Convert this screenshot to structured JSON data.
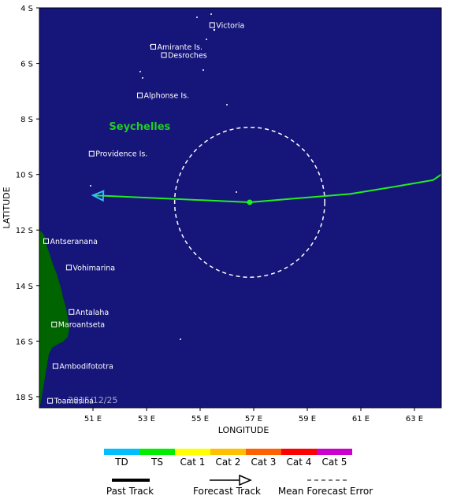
{
  "map": {
    "region": "Seychelles",
    "y_axis_label": "LATITUDE",
    "x_axis_label": "LONGITUDE",
    "lat_range": [
      4.0,
      18.4
    ],
    "lon_range": [
      49.0,
      64.0
    ],
    "lat_ticks": [
      {
        "value": 4,
        "label": "4 S"
      },
      {
        "value": 6,
        "label": "6 S"
      },
      {
        "value": 8,
        "label": "8 S"
      },
      {
        "value": 10,
        "label": "10 S"
      },
      {
        "value": 12,
        "label": "12 S"
      },
      {
        "value": 14,
        "label": "14 S"
      },
      {
        "value": 16,
        "label": "16 S"
      },
      {
        "value": 18,
        "label": "18 S"
      }
    ],
    "lon_ticks": [
      {
        "value": 51,
        "label": "51 E"
      },
      {
        "value": 53,
        "label": "53 E"
      },
      {
        "value": 55,
        "label": "55 E"
      },
      {
        "value": 57,
        "label": "57 E"
      },
      {
        "value": 59,
        "label": "59 E"
      },
      {
        "value": 61,
        "label": "61 E"
      },
      {
        "value": 63,
        "label": "63 E"
      }
    ],
    "places": [
      {
        "name": "Victoria",
        "lon": 55.45,
        "lat": 4.62
      },
      {
        "name": "Amirante Is.",
        "lon": 53.25,
        "lat": 5.4
      },
      {
        "name": "Desroches",
        "lon": 53.65,
        "lat": 5.7
      },
      {
        "name": "Alphonse Is.",
        "lon": 52.75,
        "lat": 7.15
      },
      {
        "name": "Providence Is.",
        "lon": 50.95,
        "lat": 9.25
      },
      {
        "name": "Antseranana",
        "lon": 49.25,
        "lat": 12.4
      },
      {
        "name": "Vohimarina",
        "lon": 50.1,
        "lat": 13.35
      },
      {
        "name": "Antalaha",
        "lon": 50.2,
        "lat": 14.95
      },
      {
        "name": "Maroantseta",
        "lon": 49.55,
        "lat": 15.4
      },
      {
        "name": "Ambodifototra",
        "lon": 49.6,
        "lat": 16.9
      },
      {
        "name": "Toamasina",
        "lon": 49.4,
        "lat": 18.15
      }
    ],
    "region_label": {
      "text": "Seychelles",
      "lon": 51.6,
      "lat": 8.4
    },
    "watermark": "2015/12/25",
    "forecast_track": [
      {
        "lon": 64.2,
        "lat": 10.0
      },
      {
        "lon": 63.7,
        "lat": 10.2
      },
      {
        "lon": 62.2,
        "lat": 10.45
      },
      {
        "lon": 60.6,
        "lat": 10.7
      },
      {
        "lon": 56.85,
        "lat": 11.0
      },
      {
        "lon": 51.0,
        "lat": 10.75
      }
    ],
    "storm_center": {
      "lon": 56.85,
      "lat": 11.0
    },
    "error_radius_deg": 2.7,
    "colors": {
      "ocean": "#15157a",
      "land": "#006400",
      "track": "#22ee22",
      "arrowhead": "#33bbff",
      "error_circle": "#ffffff",
      "place_text": "#ffffff",
      "region_text": "#22cc22"
    }
  },
  "legend": {
    "categories": [
      {
        "label": "TD",
        "color": "#00bfff"
      },
      {
        "label": "TS",
        "color": "#00ee00"
      },
      {
        "label": "Cat 1",
        "color": "#ffff00"
      },
      {
        "label": "Cat 2",
        "color": "#ffc000"
      },
      {
        "label": "Cat 3",
        "color": "#ff6000"
      },
      {
        "label": "Cat 4",
        "color": "#ff0000"
      },
      {
        "label": "Cat 5",
        "color": "#cc00cc"
      }
    ],
    "past_track": "Past Track",
    "forecast_track": "Forecast Track",
    "mean_error": "Mean Forecast Error"
  }
}
